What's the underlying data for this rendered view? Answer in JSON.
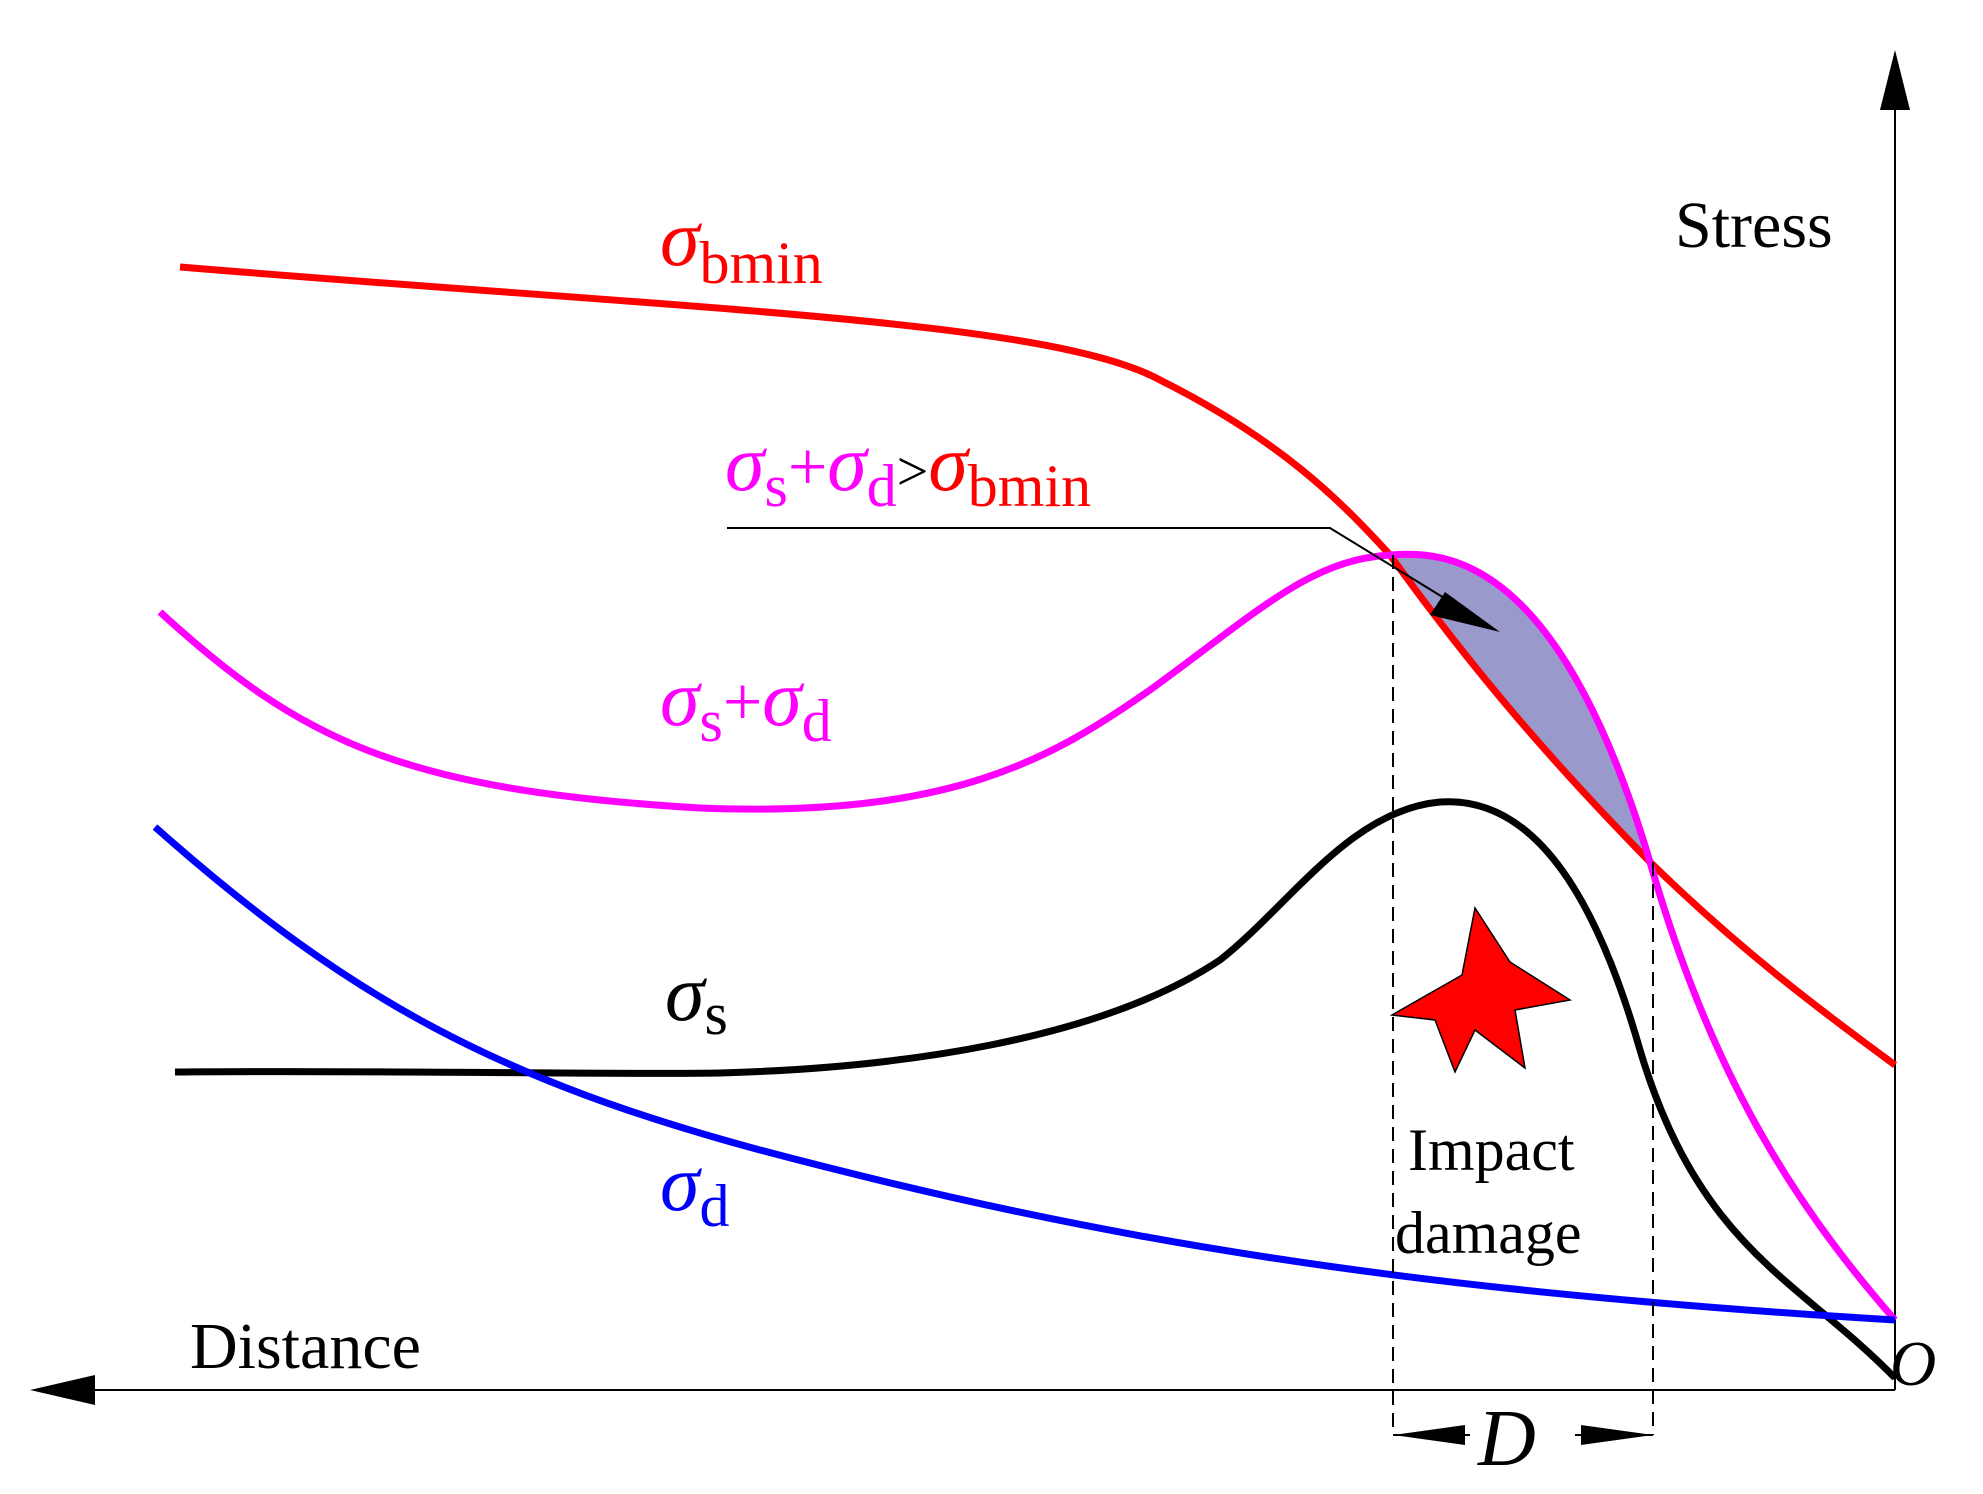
{
  "axes": {
    "y_label": "Stress",
    "x_label": "Distance",
    "origin_label": "O"
  },
  "labels": {
    "sigma_bmin": {
      "symbol": "σ",
      "subscript": "bmin"
    },
    "sum": {
      "s1": "σ",
      "sub1": "s",
      "plus": "+",
      "s2": "σ",
      "sub2": "d"
    },
    "condition": {
      "s1": "σ",
      "sub1": "s",
      "plus": "+",
      "s2": "σ",
      "sub2": "d",
      "gt": ">",
      "s3": "σ",
      "sub3": "bmin"
    },
    "sigma_s": {
      "symbol": "σ",
      "subscript": "s"
    },
    "sigma_d": {
      "symbol": "σ",
      "subscript": "d"
    },
    "impact_line1": "Impact",
    "impact_line2": "damage",
    "dimension": "D"
  },
  "colors": {
    "sigma_bmin": "#ff0000",
    "sum": "#ff00ff",
    "sigma_s": "#000000",
    "sigma_d": "#0000ff",
    "overlap_fill": "#9999cc",
    "star": "#ff0000",
    "axis": "#000000"
  }
}
